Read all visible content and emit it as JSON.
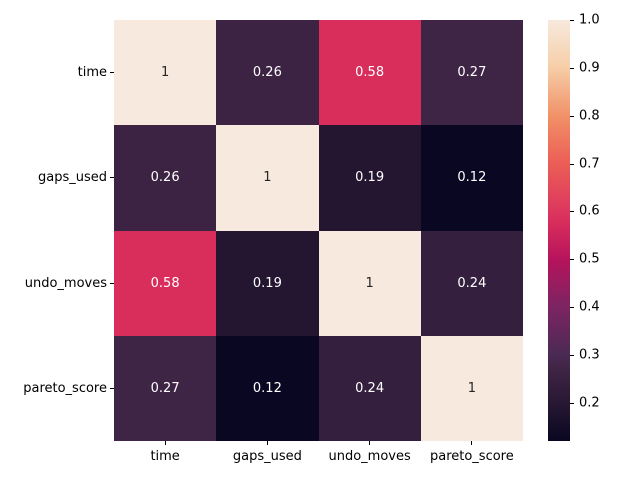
{
  "chart_data": {
    "type": "heatmap",
    "title": "",
    "xlabel": "",
    "ylabel": "",
    "categories": [
      "time",
      "gaps_used",
      "undo_moves",
      "pareto_score"
    ],
    "matrix": [
      [
        1.0,
        0.26,
        0.58,
        0.27
      ],
      [
        0.26,
        1.0,
        0.19,
        0.12
      ],
      [
        0.58,
        0.19,
        1.0,
        0.24
      ],
      [
        0.27,
        0.12,
        0.24,
        1.0
      ]
    ],
    "annotations": [
      [
        "1",
        "0.26",
        "0.58",
        "0.27"
      ],
      [
        "0.26",
        "1",
        "0.19",
        "0.12"
      ],
      [
        "0.58",
        "0.19",
        "1",
        "0.24"
      ],
      [
        "0.27",
        "0.12",
        "0.24",
        "1"
      ]
    ],
    "vmin": 0.12,
    "vmax": 1.0,
    "colormap": "rocket",
    "grid": false,
    "legend_position": "right-colorbar",
    "colorbar_ticks": [
      1.0,
      0.9,
      0.8,
      0.7,
      0.6,
      0.5,
      0.4,
      0.3,
      0.2
    ],
    "colorbar_tick_labels": [
      "1.0",
      "0.9",
      "0.8",
      "0.7",
      "0.6",
      "0.5",
      "0.4",
      "0.3",
      "0.2"
    ]
  },
  "colors": {
    "background": "#ffffff",
    "annotation_on_dark": "#ffffff",
    "annotation_on_light": "#262626",
    "tick_label": "#000000",
    "gradient_stops": [
      {
        "t": 0.0,
        "color": "#0a0722"
      },
      {
        "t": 0.08,
        "color": "#241631"
      },
      {
        "t": 0.17,
        "color": "#3f2545"
      },
      {
        "t": 0.205,
        "color": "#4b2a54"
      },
      {
        "t": 0.32,
        "color": "#7d2462"
      },
      {
        "t": 0.43,
        "color": "#b5135c"
      },
      {
        "t": 0.52,
        "color": "#d92d5c"
      },
      {
        "t": 0.545,
        "color": "#dc375e"
      },
      {
        "t": 0.66,
        "color": "#eb5e56"
      },
      {
        "t": 0.77,
        "color": "#f19066"
      },
      {
        "t": 0.89,
        "color": "#f6cfa9"
      },
      {
        "t": 1.0,
        "color": "#f7e9dd"
      }
    ]
  }
}
